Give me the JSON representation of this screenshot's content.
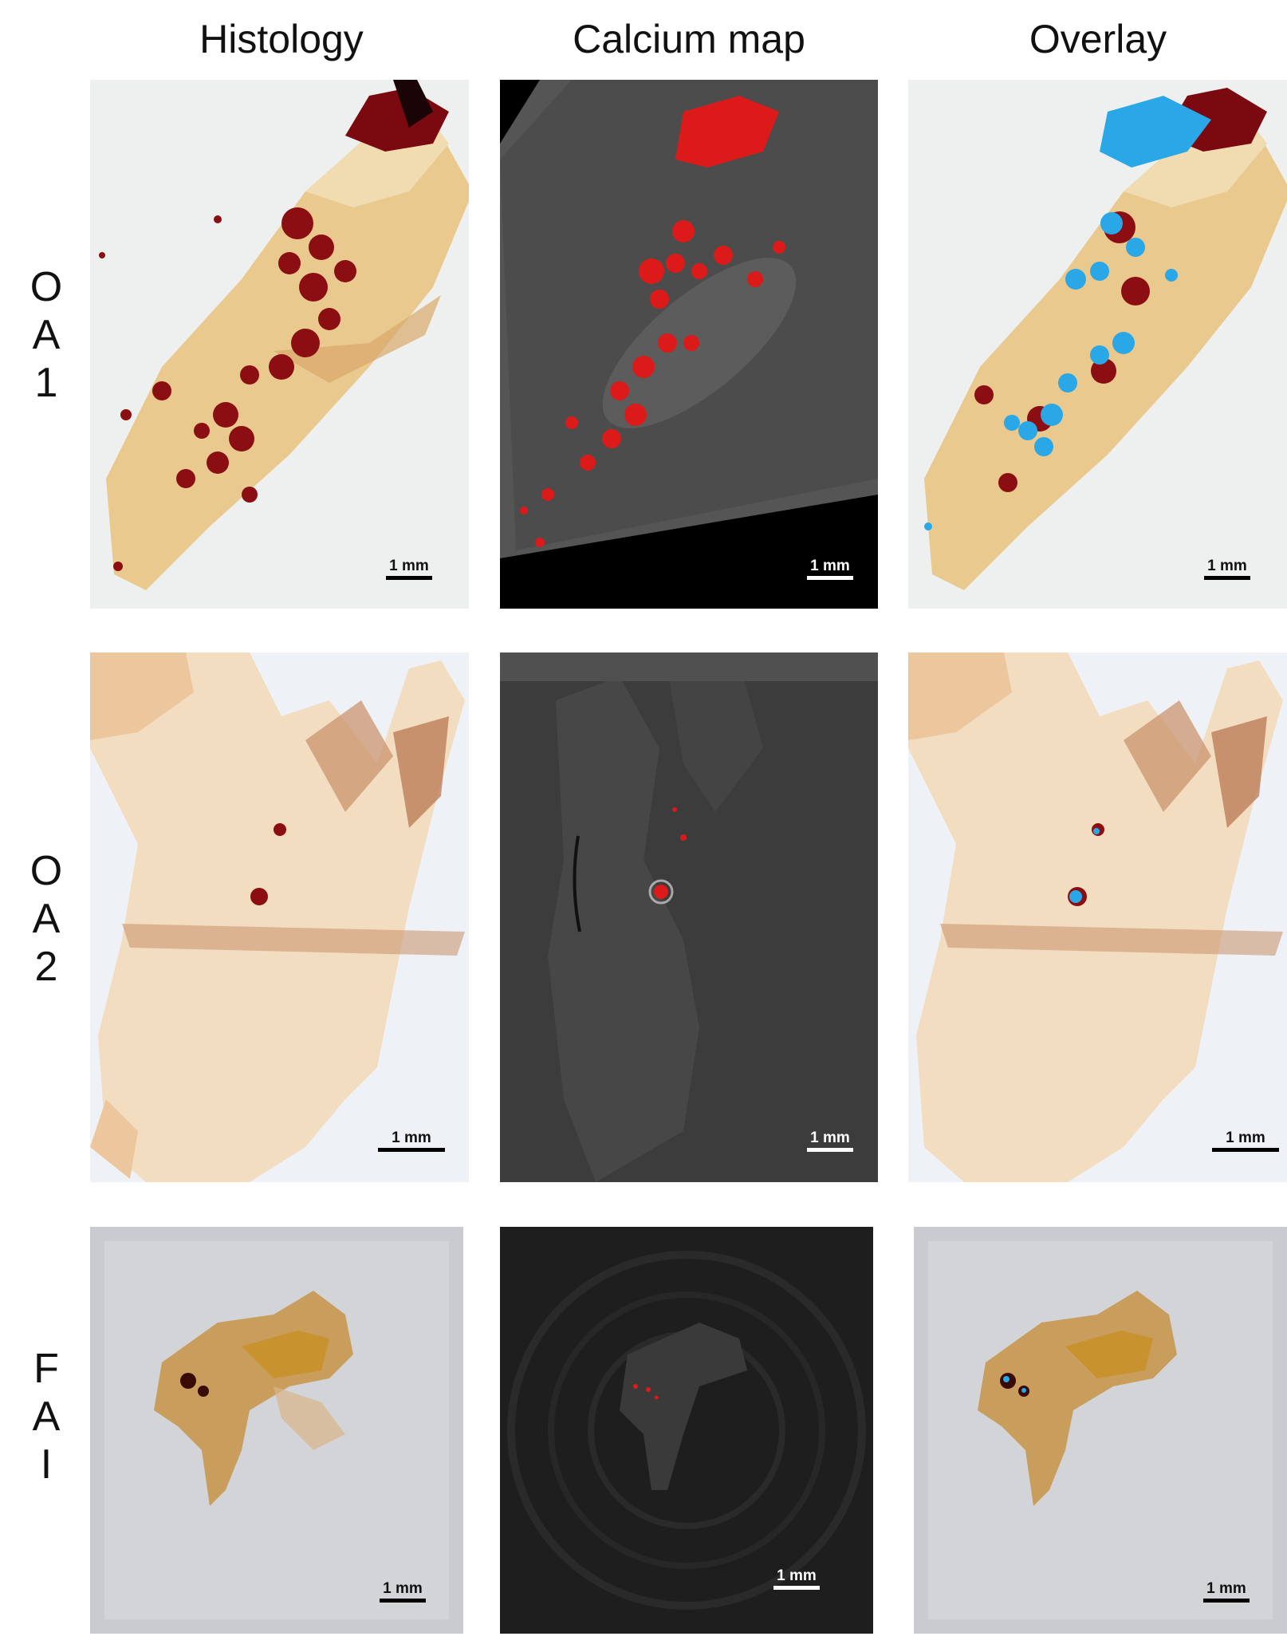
{
  "columns": [
    "Histology",
    "Calcium map",
    "Overlay"
  ],
  "rows": [
    {
      "label": [
        "O",
        "A",
        "1"
      ]
    },
    {
      "label": [
        "O",
        "A",
        "2"
      ]
    },
    {
      "label": [
        "F",
        "A",
        "I"
      ]
    }
  ],
  "scale_bar_label": "1 mm",
  "colors": {
    "calcium_marker": "#dd1a1a",
    "overlay_marker": "#2aa7e6",
    "histology_stain": "#8b0e12",
    "tissue": "#e9c98e"
  }
}
